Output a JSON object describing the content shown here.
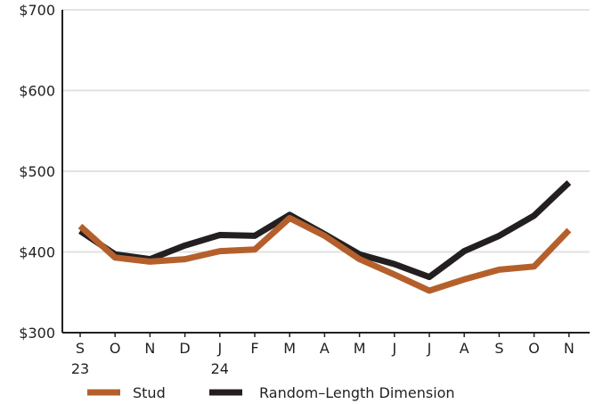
{
  "chart_data": {
    "type": "line",
    "title": "",
    "xlabel": "",
    "ylabel": "",
    "categories": [
      "S",
      "O",
      "N",
      "D",
      "J",
      "F",
      "M",
      "A",
      "M",
      "J",
      "J",
      "A",
      "S",
      "O",
      "N"
    ],
    "year_labels": [
      {
        "category_index": 0,
        "text": "23"
      },
      {
        "category_index": 4,
        "text": "24"
      }
    ],
    "y_ticks": [
      "$300",
      "$400",
      "$500",
      "$600",
      "$700"
    ],
    "ylim": [
      300,
      700
    ],
    "grid": true,
    "legend_position": "bottom",
    "series": [
      {
        "name": "Stud",
        "color": "#b5602c",
        "values": [
          432,
          393,
          388,
          391,
          401,
          403,
          442,
          420,
          391,
          372,
          352,
          366,
          378,
          382,
          427
        ]
      },
      {
        "name": "Random–Length Dimension",
        "color": "#231f20",
        "values": [
          426,
          397,
          391,
          408,
          421,
          420,
          446,
          422,
          397,
          385,
          369,
          401,
          420,
          445,
          486
        ]
      }
    ]
  }
}
